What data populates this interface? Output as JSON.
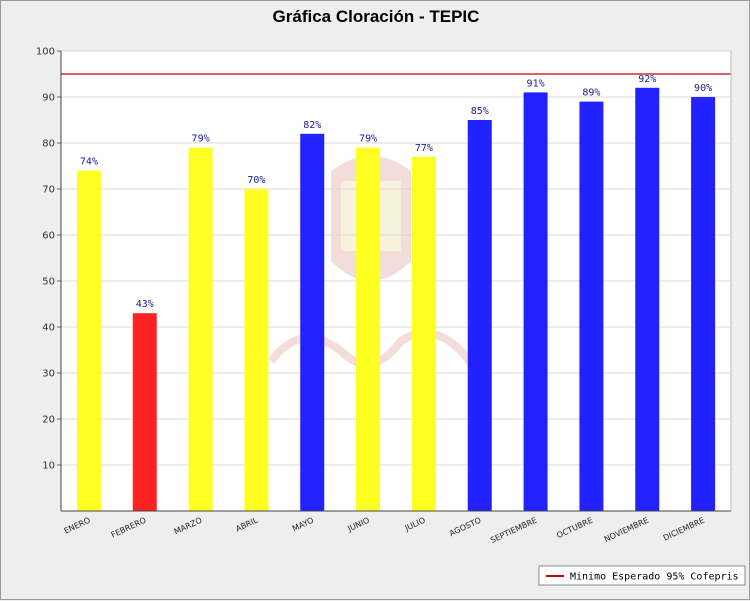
{
  "chart_data": {
    "type": "bar",
    "title": "Gráfica Cloración - TEPIC",
    "xlabel": "",
    "ylabel": "",
    "ylim": [
      0,
      100
    ],
    "yticks": [
      10,
      20,
      30,
      40,
      50,
      60,
      70,
      80,
      90,
      100
    ],
    "grid": true,
    "categories": [
      "ENERO",
      "FEBRERO",
      "MARZO",
      "ABRIL",
      "MAYO",
      "JUNIO",
      "JULIO",
      "AGOSTO",
      "SEPTIEMBRE",
      "OCTUBRE",
      "NOVIEMBRE",
      "DICIEMBRE"
    ],
    "values": [
      74,
      43,
      79,
      70,
      82,
      79,
      77,
      85,
      91,
      89,
      92,
      90
    ],
    "data_labels": [
      "74%",
      "43%",
      "79%",
      "70%",
      "82%",
      "79%",
      "77%",
      "85%",
      "91%",
      "89%",
      "92%",
      "90%"
    ],
    "bar_colors": [
      "#ffff22",
      "#ff2222",
      "#ffff22",
      "#ffff22",
      "#2222ff",
      "#ffff22",
      "#ffff22",
      "#2222ff",
      "#2222ff",
      "#2222ff",
      "#2222ff",
      "#2222ff"
    ],
    "reference_line": {
      "value": 95,
      "color": "#cc0000",
      "label": "Minimo Esperado 95% Cofepris"
    },
    "legend_position": "bottom-right"
  }
}
